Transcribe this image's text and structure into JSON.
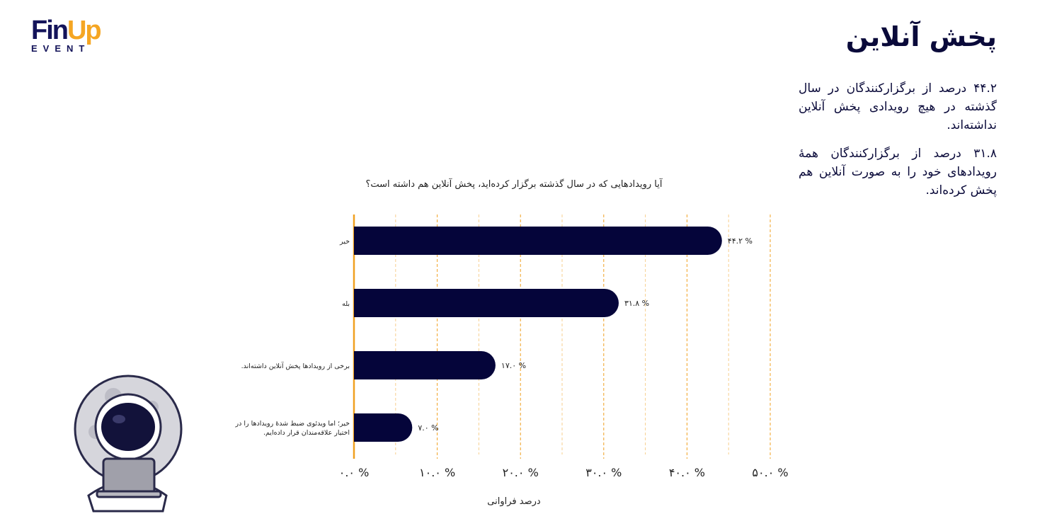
{
  "logo": {
    "fin": "Fin",
    "up": "Up",
    "event": "EVENT"
  },
  "header": {
    "title": "پخش آنلاین"
  },
  "paragraphs": [
    "۴۴.۲ درصد از برگزارکنندگان در سال گذشته در هیچ رویدادی پخش آنلاین نداشته‌اند.",
    "۳۱.۸ درصد از برگزارکنندگان همهٔ رویدادهای خود را به صورت آنلاین هم پخش کرده‌اند."
  ],
  "chart_data": {
    "type": "bar",
    "orientation": "horizontal",
    "title": "آیا رویدادهایی که در سال گذشته برگزار کرده‌اید، پخش آنلاین هم داشته است؟",
    "categories": [
      "خیر",
      "بله",
      "برخی از رویدادها پخش آنلاین داشته‌اند.",
      "خیر؛ اما ویدئوی ضبط شدهٔ رویدادها را در اختیار علاقه‌مندان قرار داده‌ایم."
    ],
    "values": [
      44.2,
      31.8,
      17.0,
      7.0
    ],
    "value_labels": [
      "۴۴.۲ %",
      "۳۱.۸ %",
      "۱۷.۰ %",
      "۷.۰ %"
    ],
    "color": "#05053a",
    "xlabel": "درصد فراوانی",
    "xlim": [
      0,
      50
    ],
    "xticks": [
      {
        "value": 0,
        "label": "۰.۰ %"
      },
      {
        "value": 10,
        "label": "۱۰.۰ %"
      },
      {
        "value": 20,
        "label": "۲۰.۰ %"
      },
      {
        "value": 30,
        "label": "۳۰.۰ %"
      },
      {
        "value": 40,
        "label": "۴۰.۰ %"
      },
      {
        "value": 50,
        "label": "۵۰.۰ %"
      }
    ],
    "xticks_minor": [
      5,
      15,
      25,
      35,
      45
    ],
    "grid": true,
    "grid_color": "#f0a020"
  }
}
